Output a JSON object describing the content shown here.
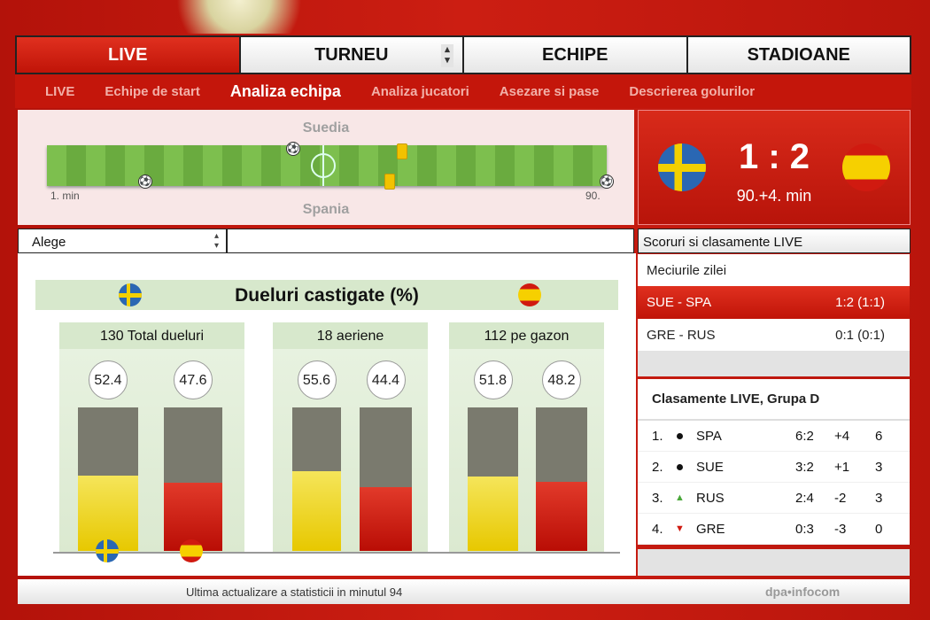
{
  "tabs": [
    {
      "label": "LIVE"
    },
    {
      "label": "TURNEU"
    },
    {
      "label": "ECHIPE"
    },
    {
      "label": "STADIOANE"
    }
  ],
  "subnav": [
    {
      "label": "LIVE"
    },
    {
      "label": "Echipe de start"
    },
    {
      "label": "Analiza echipa",
      "active": true
    },
    {
      "label": "Analiza jucatori"
    },
    {
      "label": "Asezare si pase"
    },
    {
      "label": "Descrierea golurilor"
    }
  ],
  "timeline": {
    "home": "Suedia",
    "away": "Spania",
    "start_label": "1. min",
    "end_label": "90.",
    "events": [
      {
        "team": "home",
        "type": "goal",
        "minute": 41
      },
      {
        "team": "home",
        "type": "yellow-card",
        "minute": 59
      },
      {
        "team": "away",
        "type": "goal",
        "minute": 17
      },
      {
        "team": "away",
        "type": "yellow-card",
        "minute": 57
      },
      {
        "team": "away",
        "type": "goal",
        "minute": 92
      }
    ]
  },
  "score": {
    "value": "1 : 2",
    "time": "90.+4. min",
    "home_flag": "sweden-flag",
    "away_flag": "spain-flag"
  },
  "select": {
    "value": "Alege"
  },
  "chart": {
    "title": "Dueluri castigate (%)",
    "groups": [
      {
        "label": "130 Total dueluri",
        "home": 52.4,
        "away": 47.6
      },
      {
        "label": "18 aeriene",
        "home": 55.6,
        "away": 44.4
      },
      {
        "label": "112 pe gazon",
        "home": 51.8,
        "away": 48.2
      }
    ],
    "colors": {
      "home": "#e7c800",
      "away": "#c4140a"
    }
  },
  "footer": {
    "text": "Ultima actualizare a statisticii in minutul  94",
    "brand": "dpa•infocom"
  },
  "right": {
    "title": "Scoruri si clasamente LIVE",
    "matches_title": "Meciurile zilei",
    "matches": [
      {
        "teams": "SUE - SPA",
        "score": "1:2  (1:1)"
      },
      {
        "teams": "GRE - RUS",
        "score": "0:1  (0:1)"
      }
    ],
    "standings_title": "Clasamente LIVE, Grupa D",
    "standings": [
      {
        "pos": "1.",
        "trend": "same",
        "team": "SPA",
        "goals": "6:2",
        "diff": "+4",
        "pts": "6"
      },
      {
        "pos": "2.",
        "trend": "same",
        "team": "SUE",
        "goals": "3:2",
        "diff": "+1",
        "pts": "3"
      },
      {
        "pos": "3.",
        "trend": "up",
        "team": "RUS",
        "goals": "2:4",
        "diff": "-2",
        "pts": "3"
      },
      {
        "pos": "4.",
        "trend": "down",
        "team": "GRE",
        "goals": "0:3",
        "diff": "-3",
        "pts": "0"
      }
    ]
  }
}
